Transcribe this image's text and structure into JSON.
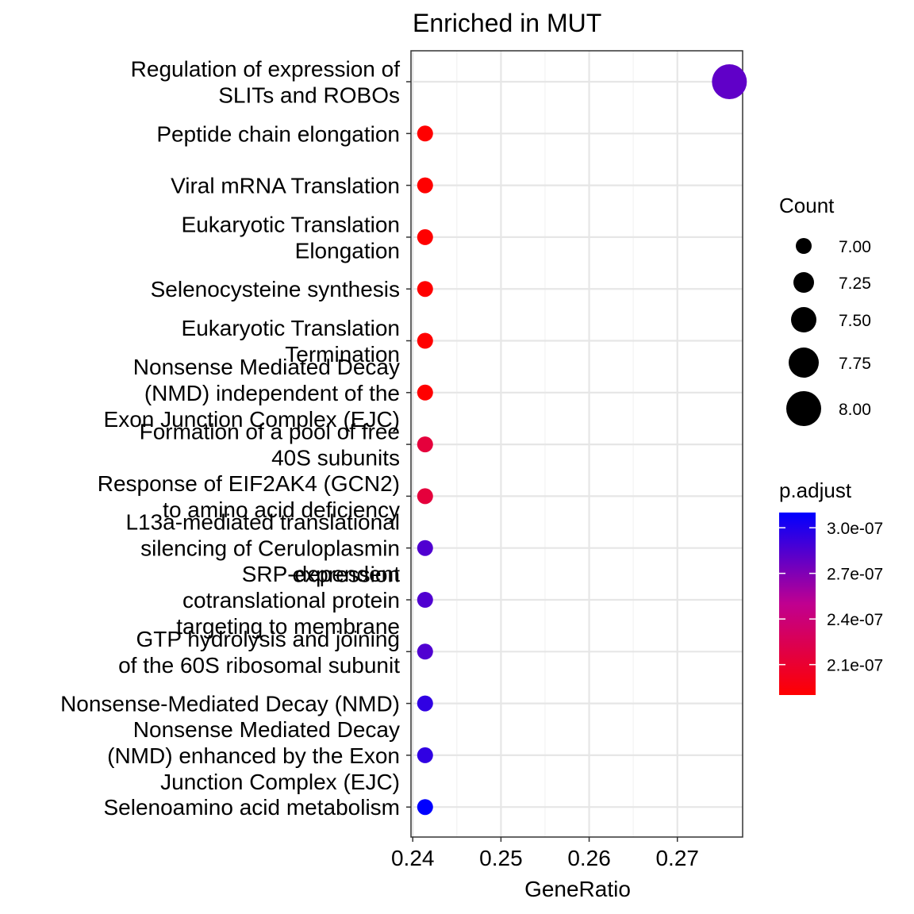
{
  "chart_data": {
    "type": "scatter",
    "title": "Enriched in MUT",
    "xlabel": "GeneRatio",
    "ylabel": "",
    "xlim": [
      0.2398,
      0.2774
    ],
    "x_ticks": [
      0.24,
      0.25,
      0.26,
      0.27
    ],
    "x_tick_labels": [
      "0.24",
      "0.25",
      "0.26",
      "0.27"
    ],
    "grid": true,
    "legend_position": "right",
    "categories": [
      "Regulation of expression of SLITs and ROBOs",
      "Peptide chain elongation",
      "Viral mRNA Translation",
      "Eukaryotic Translation Elongation",
      "Selenocysteine synthesis",
      "Eukaryotic Translation Termination",
      "Nonsense Mediated Decay (NMD) independent of the Exon Junction Complex (EJC)",
      "Formation of a pool of free 40S subunits",
      "Response of EIF2AK4 (GCN2) to amino acid deficiency",
      "L13a-mediated translational silencing of Ceruloplasmin expression",
      "SRP-dependent cotranslational protein targeting to membrane",
      "GTP hydrolysis and joining of the 60S ribosomal subunit",
      "Nonsense-Mediated Decay (NMD)",
      "Nonsense Mediated Decay (NMD) enhanced by the Exon Junction Complex (EJC)",
      "Selenoamino acid metabolism"
    ],
    "category_label_lines": [
      [
        "Regulation of expression of",
        "SLITs and ROBOs"
      ],
      [
        "Peptide chain elongation"
      ],
      [
        "Viral mRNA Translation"
      ],
      [
        "Eukaryotic Translation",
        "Elongation"
      ],
      [
        "Selenocysteine synthesis"
      ],
      [
        "Eukaryotic Translation",
        "Termination"
      ],
      [
        "Nonsense Mediated Decay",
        "(NMD) independent of the",
        "Exon Junction Complex (EJC)"
      ],
      [
        "Formation of a pool of free",
        "40S subunits"
      ],
      [
        "Response of EIF2AK4 (GCN2)",
        "to amino acid deficiency"
      ],
      [
        "L13a-mediated translational",
        "silencing of Ceruloplasmin",
        "expression"
      ],
      [
        "SRP-dependent",
        "cotranslational protein",
        "targeting to membrane"
      ],
      [
        "GTP hydrolysis and joining",
        "of the 60S ribosomal subunit"
      ],
      [
        "Nonsense-Mediated Decay (NMD)"
      ],
      [
        "Nonsense Mediated Decay",
        "(NMD) enhanced by the Exon",
        "Junction Complex (EJC)"
      ],
      [
        "Selenoamino acid metabolism"
      ]
    ],
    "points": [
      {
        "x": 0.2759,
        "count": 8,
        "p_adjust": 2.8e-07
      },
      {
        "x": 0.2414,
        "count": 7,
        "p_adjust": 1.9e-07
      },
      {
        "x": 0.2414,
        "count": 7,
        "p_adjust": 1.9e-07
      },
      {
        "x": 0.2414,
        "count": 7,
        "p_adjust": 1.9e-07
      },
      {
        "x": 0.2414,
        "count": 7,
        "p_adjust": 1.9e-07
      },
      {
        "x": 0.2414,
        "count": 7,
        "p_adjust": 1.9e-07
      },
      {
        "x": 0.2414,
        "count": 7,
        "p_adjust": 1.9e-07
      },
      {
        "x": 0.2414,
        "count": 7,
        "p_adjust": 2.15e-07
      },
      {
        "x": 0.2414,
        "count": 7,
        "p_adjust": 2.15e-07
      },
      {
        "x": 0.2414,
        "count": 7,
        "p_adjust": 2.85e-07
      },
      {
        "x": 0.2414,
        "count": 7,
        "p_adjust": 2.85e-07
      },
      {
        "x": 0.2414,
        "count": 7,
        "p_adjust": 2.85e-07
      },
      {
        "x": 0.2414,
        "count": 7,
        "p_adjust": 2.95e-07
      },
      {
        "x": 0.2414,
        "count": 7,
        "p_adjust": 2.95e-07
      },
      {
        "x": 0.2414,
        "count": 7,
        "p_adjust": 3.1e-07
      }
    ],
    "size_legend": {
      "title": "Count",
      "values": [
        7.0,
        7.25,
        7.5,
        7.75,
        8.0
      ],
      "labels": [
        "7.00",
        "7.25",
        "7.50",
        "7.75",
        "8.00"
      ]
    },
    "color_legend": {
      "title": "p.adjust",
      "range": [
        1.9e-07,
        3.1e-07
      ],
      "low_color": "#FF0000",
      "high_color": "#0000FF",
      "ticks": [
        3e-07,
        2.7e-07,
        2.4e-07,
        2.1e-07
      ],
      "tick_labels": [
        "3.0e-07",
        "2.7e-07",
        "2.4e-07",
        "2.1e-07"
      ]
    }
  }
}
